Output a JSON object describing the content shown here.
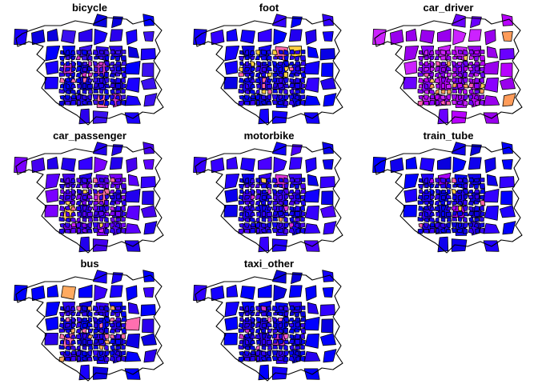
{
  "panels": [
    {
      "title": "bicycle",
      "palette": [
        "#0000ff",
        "#1a00ff",
        "#2a00ee",
        "#0a00e0",
        "#3a10f0"
      ],
      "highlights": [
        "#ff6fb0",
        "#cc33cc"
      ]
    },
    {
      "title": "foot",
      "palette": [
        "#0000ff",
        "#1400ff",
        "#2200f0",
        "#0800e6",
        "#3300ff"
      ],
      "highlights": [
        "#ffd040",
        "#ff66aa"
      ]
    },
    {
      "title": "car_driver",
      "palette": [
        "#8a00ff",
        "#b800ff",
        "#6a00ff",
        "#cc22ff",
        "#9900ee"
      ],
      "highlights": [
        "#ff9c5a",
        "#ff5ab0",
        "#ffcc55"
      ]
    },
    {
      "title": "car_passenger",
      "palette": [
        "#3300ff",
        "#5a00ff",
        "#2200ee",
        "#7a00ff",
        "#4400f0"
      ],
      "highlights": [
        "#ff6fa0",
        "#ffcc55",
        "#cc22ff"
      ]
    },
    {
      "title": "motorbike",
      "palette": [
        "#1100ff",
        "#2200ff",
        "#0a00ee",
        "#3500ff",
        "#4a00ff"
      ],
      "highlights": [
        "#ff9c5a",
        "#dd33dd",
        "#ffcc55"
      ]
    },
    {
      "title": "train_tube",
      "palette": [
        "#0000ff",
        "#1000ee",
        "#2000ff",
        "#0a00dd",
        "#3300ff"
      ],
      "highlights": [
        "#ffd040",
        "#ff66aa",
        "#aa00ff"
      ]
    },
    {
      "title": "bus",
      "palette": [
        "#0000ff",
        "#1a00ff",
        "#2a00ee",
        "#0c00e6",
        "#3800ff"
      ],
      "highlights": [
        "#ff6fb0",
        "#ffaa60"
      ]
    },
    {
      "title": "taxi_other",
      "palette": [
        "#0000ff",
        "#1400ff",
        "#2600f0",
        "#0800e0",
        "#3000ff"
      ],
      "highlights": [
        "#ff66cc",
        "#cc33cc"
      ]
    }
  ]
}
